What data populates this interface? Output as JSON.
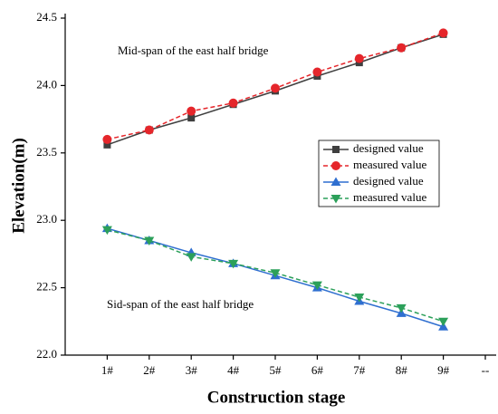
{
  "chart_data": {
    "type": "line",
    "annotations": [
      "Mid-span of the east half bridge",
      "Sid-span of the east half bridge"
    ],
    "xlabel": "Construction stage",
    "ylabel": "Elevation(m)",
    "categories": [
      "1#",
      "2#",
      "3#",
      "4#",
      "5#",
      "6#",
      "7#",
      "8#",
      "9#",
      "--"
    ],
    "series": [
      {
        "name": "designed value",
        "color": "#3f3f3f",
        "marker": "square",
        "dashed": false,
        "values": [
          23.56,
          23.67,
          23.76,
          23.86,
          23.96,
          24.07,
          24.17,
          24.28,
          24.38,
          null
        ]
      },
      {
        "name": "measured value",
        "color": "#e5262b",
        "marker": "circle",
        "dashed": true,
        "values": [
          23.6,
          23.67,
          23.81,
          23.87,
          23.98,
          24.1,
          24.2,
          24.28,
          24.39,
          null
        ]
      },
      {
        "name": "designed value",
        "color": "#2f6fd0",
        "marker": "triangle-up",
        "dashed": false,
        "values": [
          22.94,
          22.85,
          22.76,
          22.68,
          22.59,
          22.5,
          22.4,
          22.31,
          22.21,
          null
        ]
      },
      {
        "name": "measured value",
        "color": "#2ca05a",
        "marker": "triangle-down",
        "dashed": true,
        "values": [
          22.93,
          22.85,
          22.73,
          22.68,
          22.61,
          22.52,
          22.43,
          22.35,
          22.25,
          null
        ]
      }
    ],
    "ylim": [
      22.0,
      24.5
    ],
    "yticks": [
      {
        "value": 22.0,
        "label": "22.0"
      },
      {
        "value": 22.5,
        "label": "22.5"
      },
      {
        "value": 23.0,
        "label": "23.0"
      },
      {
        "value": 23.5,
        "label": "23.5"
      },
      {
        "value": 24.0,
        "label": "24.0"
      },
      {
        "value": 24.5,
        "label": "24.5"
      }
    ],
    "legend": "right"
  }
}
